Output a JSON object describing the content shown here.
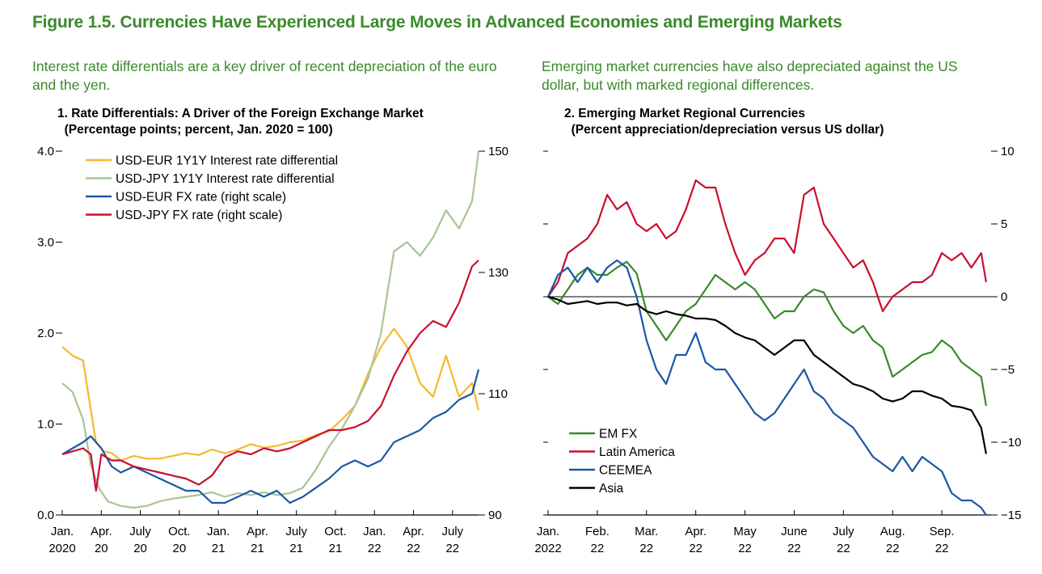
{
  "figure": {
    "title": "Figure 1.5. Currencies Have Experienced Large Moves in Advanced Economies and Emerging Markets",
    "left_subtitle": "Interest rate differentials are a key driver of recent depreciation of the euro and the yen.",
    "right_subtitle": "Emerging market currencies have also depreciated against the US dollar, but with marked regional differences."
  },
  "panel1": {
    "title_line1": "1. Rate Differentials: A Driver of the Foreign Exchange Market",
    "title_line2": "(Percentage points; percent, Jan. 2020 = 100)"
  },
  "panel2": {
    "title_line1": "2. Emerging Market Regional Currencies",
    "title_line2": "(Percent appreciation/depreciation versus US dollar)"
  },
  "chart_data": [
    {
      "type": "line",
      "ylim_left": [
        0,
        4
      ],
      "ylim_right": [
        90,
        150
      ],
      "left_ticks": [
        "0.0",
        "1.0",
        "2.0",
        "3.0",
        "4.0"
      ],
      "right_ticks": [
        "90",
        "110",
        "130",
        "150"
      ],
      "x_ticks": [
        {
          "line1": "Jan.",
          "line2": "2020"
        },
        {
          "line1": "Apr.",
          "line2": "20"
        },
        {
          "line1": "July",
          "line2": "20"
        },
        {
          "line1": "Oct.",
          "line2": "20"
        },
        {
          "line1": "Jan.",
          "line2": "21"
        },
        {
          "line1": "Apr.",
          "line2": "21"
        },
        {
          "line1": "July",
          "line2": "21"
        },
        {
          "line1": "Oct.",
          "line2": "21"
        },
        {
          "line1": "Jan.",
          "line2": "22"
        },
        {
          "line1": "Apr.",
          "line2": "22"
        },
        {
          "line1": "July",
          "line2": "22"
        }
      ],
      "legend_position": "top-left",
      "series": [
        {
          "name": "USD-EUR 1Y1Y Interest rate differential",
          "axis": "left",
          "color": "#f5b82e",
          "x": [
            0,
            0.8,
            1.6,
            2.2,
            2.6,
            3.2,
            3.8,
            4.5,
            5.5,
            6.5,
            7.5,
            8.5,
            9.5,
            10.5,
            11.5,
            12.5,
            13.5,
            14.5,
            15.5,
            16.5,
            17.5,
            18.5,
            19.5,
            20.5,
            21.5,
            22.5,
            23.5,
            24.5,
            25.5,
            26.5,
            27.5,
            28.5,
            29.5,
            30.5,
            31.5,
            32.0
          ],
          "values": [
            1.85,
            1.75,
            1.7,
            1.15,
            0.8,
            0.7,
            0.68,
            0.6,
            0.65,
            0.62,
            0.62,
            0.65,
            0.68,
            0.66,
            0.72,
            0.68,
            0.72,
            0.78,
            0.74,
            0.76,
            0.8,
            0.82,
            0.88,
            0.92,
            1.05,
            1.2,
            1.55,
            1.85,
            2.05,
            1.85,
            1.45,
            1.3,
            1.75,
            1.3,
            1.45,
            1.15
          ]
        },
        {
          "name": "USD-JPY 1Y1Y Interest rate differential",
          "axis": "left",
          "color": "#a8c49a",
          "x": [
            0,
            0.8,
            1.6,
            2.2,
            2.8,
            3.5,
            4.5,
            5.5,
            6.5,
            7.5,
            8.5,
            9.5,
            10.5,
            11.5,
            12.5,
            13.5,
            14.5,
            15.5,
            16.5,
            17.5,
            18.5,
            19.5,
            20.5,
            21.5,
            22.5,
            23.5,
            24.5,
            25.0,
            25.5,
            26.5,
            27.5,
            28.5,
            29.5,
            30.5,
            31.5,
            32.0
          ],
          "values": [
            1.45,
            1.35,
            1.05,
            0.55,
            0.3,
            0.15,
            0.1,
            0.08,
            0.1,
            0.15,
            0.18,
            0.2,
            0.22,
            0.25,
            0.2,
            0.24,
            0.22,
            0.25,
            0.22,
            0.24,
            0.3,
            0.5,
            0.75,
            0.95,
            1.2,
            1.5,
            2.0,
            2.45,
            2.9,
            3.0,
            2.85,
            3.05,
            3.35,
            3.15,
            3.45,
            4.0
          ]
        },
        {
          "name": "USD-EUR FX rate (right scale)",
          "axis": "right",
          "color": "#1c57a5",
          "x": [
            0,
            0.8,
            1.6,
            2.2,
            3.0,
            3.8,
            4.5,
            5.5,
            6.5,
            7.5,
            8.5,
            9.5,
            10.5,
            11.5,
            12.5,
            13.5,
            14.5,
            15.5,
            16.5,
            17.5,
            18.5,
            19.5,
            20.5,
            21.5,
            22.5,
            23.5,
            24.5,
            25.5,
            26.5,
            27.5,
            28.5,
            29.5,
            30.5,
            31.5,
            32.0
          ],
          "values": [
            100,
            101,
            102,
            103,
            101,
            98,
            97,
            98,
            97,
            96,
            95,
            94,
            94,
            92,
            92,
            93,
            94,
            93,
            94,
            92,
            93,
            94.5,
            96,
            98,
            99,
            98,
            99,
            102,
            103,
            104,
            106,
            107,
            109,
            110,
            114
          ]
        },
        {
          "name": "USD-JPY FX rate (right scale)",
          "axis": "right",
          "color": "#c8102e",
          "x": [
            0,
            0.8,
            1.6,
            2.2,
            2.6,
            3.0,
            3.8,
            4.5,
            5.5,
            6.5,
            7.5,
            8.5,
            9.5,
            10.5,
            11.5,
            12.5,
            13.5,
            14.5,
            15.5,
            16.5,
            17.5,
            18.5,
            19.5,
            20.5,
            21.5,
            22.5,
            23.5,
            24.5,
            25.5,
            26.5,
            27.5,
            28.5,
            29.5,
            30.5,
            31.5,
            32.0
          ],
          "values": [
            100,
            100.5,
            101,
            100,
            94,
            100,
            99,
            99,
            98,
            97.5,
            97,
            96.5,
            96,
            95,
            96.5,
            99.5,
            100.5,
            100,
            101,
            100.5,
            101,
            102,
            103,
            104,
            104,
            104.5,
            105.5,
            108,
            113,
            117,
            120,
            122,
            121,
            125,
            131,
            132
          ]
        }
      ]
    },
    {
      "type": "line",
      "ylim": [
        -15,
        10
      ],
      "right_ticks": [
        "10",
        "5",
        "0",
        "−5",
        "−10",
        "−15"
      ],
      "x_ticks": [
        {
          "line1": "Jan.",
          "line2": "2022"
        },
        {
          "line1": "Feb.",
          "line2": "22"
        },
        {
          "line1": "Mar.",
          "line2": "22"
        },
        {
          "line1": "Apr.",
          "line2": "22"
        },
        {
          "line1": "May",
          "line2": "22"
        },
        {
          "line1": "June",
          "line2": "22"
        },
        {
          "line1": "July",
          "line2": "22"
        },
        {
          "line1": "Aug.",
          "line2": "22"
        },
        {
          "line1": "Sep.",
          "line2": "22"
        }
      ],
      "legend_position": "bottom-left",
      "series": [
        {
          "name": "EM FX",
          "color": "#3a8a2b",
          "x": [
            0,
            0.2,
            0.4,
            0.6,
            0.8,
            1.0,
            1.2,
            1.4,
            1.6,
            1.8,
            2.0,
            2.2,
            2.4,
            2.6,
            2.8,
            3.0,
            3.2,
            3.4,
            3.6,
            3.8,
            4.0,
            4.2,
            4.4,
            4.6,
            4.8,
            5.0,
            5.2,
            5.4,
            5.6,
            5.8,
            6.0,
            6.2,
            6.4,
            6.6,
            6.8,
            7.0,
            7.2,
            7.4,
            7.6,
            7.8,
            8.0,
            8.2,
            8.4,
            8.6,
            8.8,
            8.9
          ],
          "values": [
            0,
            -0.5,
            0.5,
            1.5,
            2,
            1.5,
            1.5,
            2,
            2.4,
            1.6,
            -1,
            -2,
            -3,
            -2,
            -1,
            -0.5,
            0.5,
            1.5,
            1,
            0.5,
            1,
            0.5,
            -0.5,
            -1.5,
            -1,
            -1,
            0,
            0.5,
            0.3,
            -1,
            -2,
            -2.5,
            -2,
            -3,
            -3.5,
            -5.5,
            -5,
            -4.5,
            -4,
            -3.8,
            -3,
            -3.5,
            -4.5,
            -5,
            -5.5,
            -7.5
          ]
        },
        {
          "name": "Latin America",
          "color": "#c8102e",
          "x": [
            0,
            0.2,
            0.4,
            0.6,
            0.8,
            1.0,
            1.2,
            1.4,
            1.6,
            1.8,
            2.0,
            2.2,
            2.4,
            2.6,
            2.8,
            3.0,
            3.2,
            3.4,
            3.6,
            3.8,
            4.0,
            4.2,
            4.4,
            4.6,
            4.8,
            5.0,
            5.2,
            5.4,
            5.6,
            5.8,
            6.0,
            6.2,
            6.4,
            6.6,
            6.8,
            7.0,
            7.2,
            7.4,
            7.6,
            7.8,
            8.0,
            8.2,
            8.4,
            8.6,
            8.8,
            8.9
          ],
          "values": [
            0,
            1,
            3,
            3.5,
            4,
            5,
            7,
            6,
            6.5,
            5,
            4.5,
            5,
            4,
            4.5,
            6,
            8,
            7.5,
            7.5,
            5,
            3,
            1.5,
            2.5,
            3,
            4,
            4,
            3,
            7,
            7.5,
            5,
            4,
            3,
            2,
            2.5,
            1,
            -1,
            0,
            0.5,
            1,
            1,
            1.5,
            3,
            2.5,
            3,
            2,
            3,
            1
          ]
        },
        {
          "name": "CEEMEA",
          "color": "#1c57a5",
          "x": [
            0,
            0.2,
            0.4,
            0.6,
            0.8,
            1.0,
            1.2,
            1.4,
            1.6,
            1.8,
            2.0,
            2.2,
            2.4,
            2.6,
            2.8,
            3.0,
            3.2,
            3.4,
            3.6,
            3.8,
            4.0,
            4.2,
            4.4,
            4.6,
            4.8,
            5.0,
            5.2,
            5.4,
            5.6,
            5.8,
            6.0,
            6.2,
            6.4,
            6.6,
            6.8,
            7.0,
            7.2,
            7.4,
            7.6,
            7.8,
            8.0,
            8.2,
            8.4,
            8.6,
            8.8,
            8.9
          ],
          "values": [
            0,
            1.5,
            2,
            1,
            2,
            1,
            2,
            2.5,
            2,
            0,
            -3,
            -5,
            -6,
            -4,
            -4,
            -2.5,
            -4.5,
            -5,
            -5,
            -6,
            -7,
            -8,
            -8.5,
            -8,
            -7,
            -6,
            -5,
            -6.5,
            -7,
            -8,
            -8.5,
            -9,
            -10,
            -11,
            -11.5,
            -12,
            -11,
            -12,
            -11,
            -11.5,
            -12,
            -13.5,
            -14,
            -14,
            -14.5,
            -15
          ]
        },
        {
          "name": "Asia",
          "color": "#000000",
          "x": [
            0,
            0.2,
            0.4,
            0.6,
            0.8,
            1.0,
            1.2,
            1.4,
            1.6,
            1.8,
            2.0,
            2.2,
            2.4,
            2.6,
            2.8,
            3.0,
            3.2,
            3.4,
            3.6,
            3.8,
            4.0,
            4.2,
            4.4,
            4.6,
            4.8,
            5.0,
            5.2,
            5.4,
            5.6,
            5.8,
            6.0,
            6.2,
            6.4,
            6.6,
            6.8,
            7.0,
            7.2,
            7.4,
            7.6,
            7.8,
            8.0,
            8.2,
            8.4,
            8.6,
            8.8,
            8.9
          ],
          "values": [
            0,
            -0.2,
            -0.5,
            -0.4,
            -0.3,
            -0.5,
            -0.4,
            -0.4,
            -0.6,
            -0.5,
            -1,
            -1.2,
            -1.0,
            -1.2,
            -1.3,
            -1.5,
            -1.5,
            -1.6,
            -2,
            -2.5,
            -2.8,
            -3,
            -3.5,
            -4,
            -3.5,
            -3,
            -3,
            -4,
            -4.5,
            -5,
            -5.5,
            -6,
            -6.2,
            -6.5,
            -7,
            -7.2,
            -7,
            -6.5,
            -6.5,
            -6.8,
            -7,
            -7.5,
            -7.6,
            -7.8,
            -9,
            -10.8
          ]
        }
      ]
    }
  ]
}
